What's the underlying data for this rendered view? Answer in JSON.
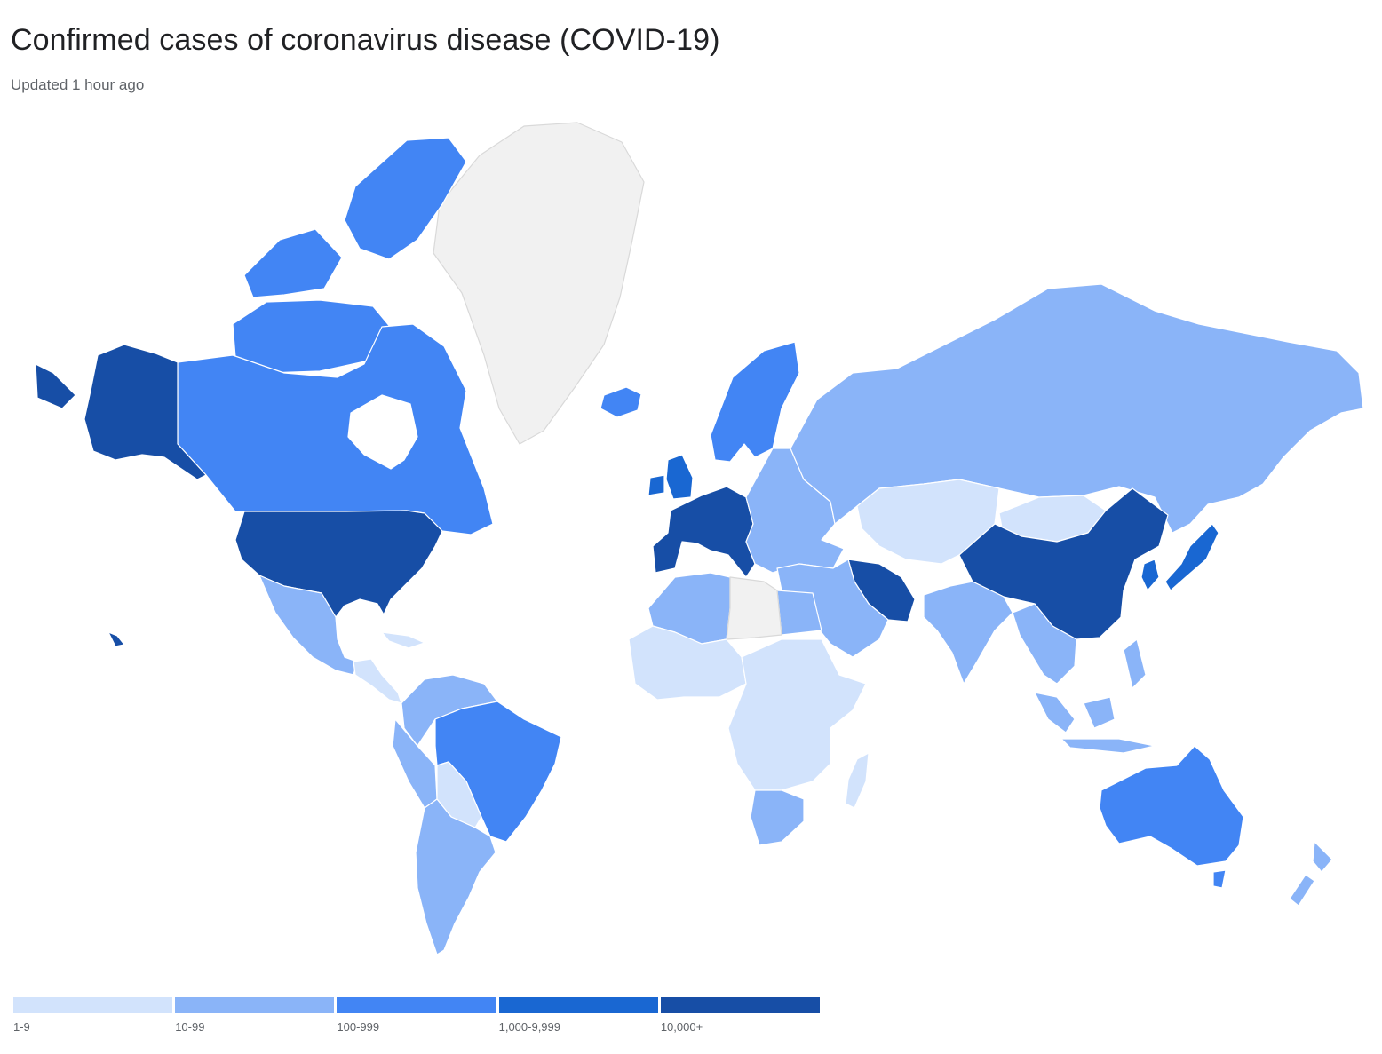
{
  "header": {
    "title": "Confirmed cases of coronavirus disease (COVID-19)",
    "subtitle": "Updated 1 hour ago"
  },
  "colors": {
    "unreported": "#f1f1f1",
    "tier_1": "#d2e3fc",
    "tier_2": "#8ab4f8",
    "tier_3": "#4285f4",
    "tier_4": "#1967d2",
    "tier_5": "#174ea6"
  },
  "legend": {
    "items": [
      {
        "label": "1-9",
        "color": "#d2e3fc"
      },
      {
        "label": "10-99",
        "color": "#8ab4f8"
      },
      {
        "label": "100-999",
        "color": "#4285f4"
      },
      {
        "label": "1,000-9,999",
        "color": "#1967d2"
      },
      {
        "label": "10,000+",
        "color": "#174ea6"
      }
    ]
  },
  "regions": [
    {
      "name": "canada",
      "tier": 3
    },
    {
      "name": "canadian-arctic-islands",
      "tier": 3
    },
    {
      "name": "alaska",
      "tier": 5
    },
    {
      "name": "united-states",
      "tier": 5
    },
    {
      "name": "mexico",
      "tier": 2
    },
    {
      "name": "central-america",
      "tier": 1
    },
    {
      "name": "greenland",
      "tier": 0
    },
    {
      "name": "iceland",
      "tier": 3
    },
    {
      "name": "colombia-venezuela",
      "tier": 2
    },
    {
      "name": "brazil",
      "tier": 3
    },
    {
      "name": "peru",
      "tier": 2
    },
    {
      "name": "bolivia",
      "tier": 1
    },
    {
      "name": "argentina-chile",
      "tier": 2
    },
    {
      "name": "western-europe",
      "tier": 5
    },
    {
      "name": "united-kingdom",
      "tier": 4
    },
    {
      "name": "scandinavia",
      "tier": 3
    },
    {
      "name": "eastern-europe",
      "tier": 2
    },
    {
      "name": "russia",
      "tier": 2
    },
    {
      "name": "kazakhstan",
      "tier": 1
    },
    {
      "name": "mongolia",
      "tier": 1
    },
    {
      "name": "china",
      "tier": 5
    },
    {
      "name": "korea",
      "tier": 4
    },
    {
      "name": "japan",
      "tier": 4
    },
    {
      "name": "iran",
      "tier": 5
    },
    {
      "name": "middle-east",
      "tier": 2
    },
    {
      "name": "india",
      "tier": 2
    },
    {
      "name": "southeast-asia",
      "tier": 2
    },
    {
      "name": "indonesia",
      "tier": 2
    },
    {
      "name": "north-africa",
      "tier": 2
    },
    {
      "name": "libya",
      "tier": 0
    },
    {
      "name": "west-africa",
      "tier": 1
    },
    {
      "name": "central-africa",
      "tier": 1
    },
    {
      "name": "south-africa",
      "tier": 2
    },
    {
      "name": "madagascar",
      "tier": 1
    },
    {
      "name": "australia",
      "tier": 3
    },
    {
      "name": "new-zealand",
      "tier": 2
    }
  ]
}
